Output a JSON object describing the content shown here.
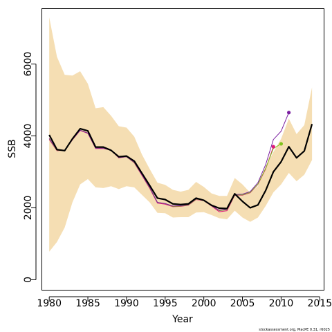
{
  "chart_data": {
    "type": "line",
    "xlabel": "Year",
    "ylabel": "SSB",
    "xlim": [
      1979,
      2015.6
    ],
    "ylim": [
      -300,
      7550
    ],
    "x_ticks": [
      1980,
      1985,
      1990,
      1995,
      2000,
      2005,
      2010,
      2015
    ],
    "y_ticks": [
      0,
      2000,
      4000,
      6000
    ],
    "credit": "stockassessment.org, MacPE 0.31, r6025",
    "colors": {
      "band": "#f5deb3",
      "estimate": "#000000",
      "retro_1": "#e0187a",
      "retro_2": "#7fc31c",
      "retro_3": "#7a1ea0"
    },
    "years": [
      1980,
      1981,
      1982,
      1983,
      1984,
      1985,
      1986,
      1987,
      1988,
      1989,
      1990,
      1991,
      1992,
      1993,
      1994,
      1995,
      1996,
      1997,
      1998,
      1999,
      2000,
      2001,
      2002,
      2003,
      2004,
      2005,
      2006,
      2007,
      2008,
      2009,
      2010,
      2011,
      2012,
      2013,
      2014
    ],
    "upper": [
      7300,
      6200,
      5700,
      5680,
      5800,
      5450,
      4770,
      4800,
      4560,
      4270,
      4230,
      3980,
      3480,
      3080,
      2700,
      2640,
      2500,
      2450,
      2500,
      2720,
      2580,
      2400,
      2330,
      2330,
      2830,
      2650,
      2420,
      2600,
      3150,
      3550,
      3920,
      4480,
      4050,
      4300,
      5350
    ],
    "lower": [
      780,
      1050,
      1450,
      2150,
      2650,
      2800,
      2570,
      2550,
      2600,
      2520,
      2600,
      2570,
      2360,
      2150,
      1860,
      1850,
      1730,
      1740,
      1740,
      1870,
      1880,
      1800,
      1710,
      1680,
      1920,
      1730,
      1610,
      1730,
      2050,
      2430,
      2650,
      2970,
      2740,
      2920,
      3330
    ],
    "series": [
      {
        "values": [
          4030,
          3620,
          3590,
          3920,
          4200,
          4140,
          3690,
          3690,
          3600,
          3420,
          3440,
          3300,
          2960,
          2620,
          2270,
          2230,
          2110,
          2090,
          2110,
          2270,
          2210,
          2070,
          1990,
          1980,
          2390,
          2180,
          2000,
          2080,
          2480,
          3000,
          3280,
          3700,
          3390,
          3580,
          4330
        ]
      },
      {
        "start_year": 1980,
        "end_year": 2009,
        "values": [
          3900,
          3590,
          3600,
          3890,
          4150,
          4070,
          3650,
          3650,
          3600,
          3390,
          3420,
          3250,
          2900,
          2540,
          2130,
          2100,
          2030,
          2040,
          2070,
          2230,
          2200,
          2050,
          1890,
          1920,
          2350,
          2350,
          2420,
          2650,
          3080,
          3700
        ]
      },
      {
        "start_year": 1980,
        "end_year": 2010,
        "values": [
          3920,
          3600,
          3600,
          3900,
          4160,
          4080,
          3660,
          3660,
          3600,
          3400,
          3420,
          3260,
          2920,
          2560,
          2150,
          2120,
          2040,
          2050,
          2080,
          2240,
          2210,
          2060,
          1920,
          1950,
          2360,
          2360,
          2430,
          2660,
          3100,
          3650,
          3780
        ]
      },
      {
        "start_year": 1980,
        "end_year": 2011,
        "values": [
          3930,
          3610,
          3600,
          3900,
          4160,
          4080,
          3660,
          3660,
          3600,
          3400,
          3420,
          3270,
          2920,
          2570,
          2150,
          2120,
          2050,
          2060,
          2090,
          2250,
          2210,
          2060,
          1930,
          1960,
          2370,
          2380,
          2450,
          2700,
          3200,
          3900,
          4130,
          4650
        ]
      }
    ]
  }
}
